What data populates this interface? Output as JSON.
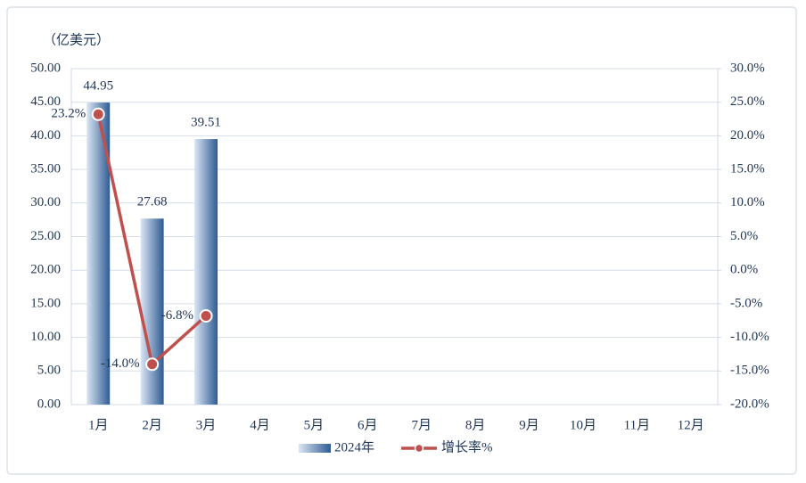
{
  "chart_data": {
    "type": "bar-line",
    "y_label": "（亿美元）",
    "categories": [
      "1月",
      "2月",
      "3月",
      "4月",
      "5月",
      "6月",
      "7月",
      "8月",
      "9月",
      "10月",
      "11月",
      "12月"
    ],
    "series": [
      {
        "name": "2024年",
        "type": "bar",
        "color": "#2f5b93",
        "values": [
          44.95,
          27.68,
          39.51,
          null,
          null,
          null,
          null,
          null,
          null,
          null,
          null,
          null
        ]
      },
      {
        "name": "增长率%",
        "type": "line",
        "axis": "y2",
        "color": "#c0504d",
        "values": [
          23.2,
          -14.0,
          -6.8,
          null,
          null,
          null,
          null,
          null,
          null,
          null,
          null,
          null
        ],
        "value_labels": [
          "23.2%",
          "-14.0%",
          "-6.8%",
          null,
          null,
          null,
          null,
          null,
          null,
          null,
          null,
          null
        ]
      }
    ],
    "ylim": [
      0,
      50
    ],
    "yticks": [
      {
        "value": 0,
        "label": "0.00"
      },
      {
        "value": 5,
        "label": "5.00"
      },
      {
        "value": 10,
        "label": "10.00"
      },
      {
        "value": 15,
        "label": "15.00"
      },
      {
        "value": 20,
        "label": "20.00"
      },
      {
        "value": 25,
        "label": "25.00"
      },
      {
        "value": 30,
        "label": "30.00"
      },
      {
        "value": 35,
        "label": "35.00"
      },
      {
        "value": 40,
        "label": "40.00"
      },
      {
        "value": 45,
        "label": "45.00"
      },
      {
        "value": 50,
        "label": "50.00"
      }
    ],
    "y2lim": [
      -20,
      30
    ],
    "y2ticks": [
      {
        "value": -20,
        "label": "-20.0%"
      },
      {
        "value": -15,
        "label": "-15.0%"
      },
      {
        "value": -10,
        "label": "-10.0%"
      },
      {
        "value": -5,
        "label": "-5.0%"
      },
      {
        "value": 0,
        "label": "0.0%"
      },
      {
        "value": 5,
        "label": "5.0%"
      },
      {
        "value": 10,
        "label": "10.0%"
      },
      {
        "value": 15,
        "label": "15.0%"
      },
      {
        "value": 20,
        "label": "20.0%"
      },
      {
        "value": 25,
        "label": "25.0%"
      },
      {
        "value": 30,
        "label": "30.0%"
      }
    ],
    "grid": true,
    "legend": "bottom"
  }
}
